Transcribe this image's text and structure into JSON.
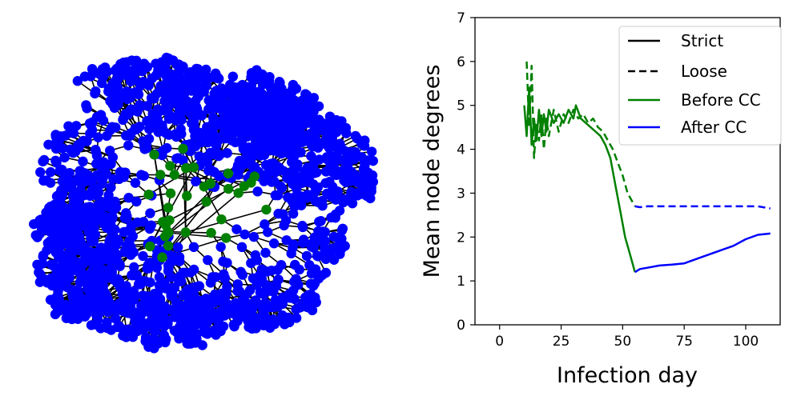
{
  "network": {
    "node_colors": {
      "core": "#008000",
      "periphery": "#0000ff"
    },
    "edge_color": "#000000"
  },
  "chart_data": {
    "type": "line",
    "xlabel": "Infection day",
    "ylabel": "Mean node degrees",
    "xlim": [
      -10,
      114
    ],
    "ylim": [
      0,
      7
    ],
    "xticks": [
      "0",
      "25",
      "50",
      "75",
      "100"
    ],
    "yticks": [
      "0",
      "1",
      "2",
      "3",
      "4",
      "5",
      "6",
      "7"
    ],
    "grid": false,
    "legend_position": "top-right",
    "legend": [
      {
        "label": "Strict",
        "style": "solid",
        "color": "#000000"
      },
      {
        "label": "Loose",
        "style": "dashed",
        "color": "#000000"
      },
      {
        "label": "Before CC",
        "style": "solid",
        "color": "#008000"
      },
      {
        "label": "After CC",
        "style": "solid",
        "color": "#0000ff"
      }
    ],
    "series": [
      {
        "line_style": "solid",
        "phase": "before",
        "color": "#008000",
        "x": [
          10,
          11,
          12,
          13,
          14,
          15,
          16,
          17,
          18,
          19,
          20,
          22,
          24,
          26,
          28,
          30,
          31,
          33,
          35,
          37,
          39,
          41,
          43,
          45,
          47,
          49,
          51,
          53,
          55
        ],
        "y": [
          5.0,
          4.3,
          5.4,
          4.1,
          4.7,
          4.2,
          4.9,
          4.3,
          4.8,
          4.4,
          4.9,
          4.6,
          4.8,
          4.6,
          4.9,
          4.7,
          5.0,
          4.7,
          4.6,
          4.5,
          4.4,
          4.3,
          4.1,
          3.8,
          3.2,
          2.6,
          2.0,
          1.6,
          1.2
        ]
      },
      {
        "line_style": "solid",
        "phase": "after",
        "color": "#0000ff",
        "x": [
          55,
          57,
          60,
          65,
          70,
          75,
          80,
          85,
          90,
          95,
          100,
          105,
          110
        ],
        "y": [
          1.2,
          1.27,
          1.3,
          1.35,
          1.37,
          1.4,
          1.5,
          1.6,
          1.7,
          1.8,
          1.95,
          2.05,
          2.08
        ]
      },
      {
        "line_style": "dashed",
        "phase": "before",
        "color": "#008000",
        "x": [
          11,
          12,
          13,
          14,
          15,
          16,
          17,
          18,
          19,
          20,
          22,
          24,
          26,
          28,
          30,
          32,
          34,
          36,
          38,
          40,
          42,
          44,
          46,
          48,
          50,
          52,
          54,
          55
        ],
        "y": [
          6.0,
          4.5,
          5.9,
          3.8,
          4.6,
          4.2,
          4.8,
          4.0,
          4.7,
          4.3,
          4.9,
          4.4,
          4.8,
          4.6,
          4.9,
          4.7,
          4.8,
          4.6,
          4.7,
          4.5,
          4.4,
          4.2,
          4.0,
          3.7,
          3.4,
          3.0,
          2.8,
          2.7
        ]
      },
      {
        "line_style": "dashed",
        "phase": "after",
        "color": "#0000ff",
        "x": [
          55,
          57,
          60,
          65,
          70,
          75,
          80,
          85,
          90,
          95,
          100,
          105,
          110
        ],
        "y": [
          2.7,
          2.68,
          2.7,
          2.7,
          2.7,
          2.7,
          2.7,
          2.7,
          2.7,
          2.7,
          2.7,
          2.7,
          2.65
        ]
      }
    ]
  }
}
